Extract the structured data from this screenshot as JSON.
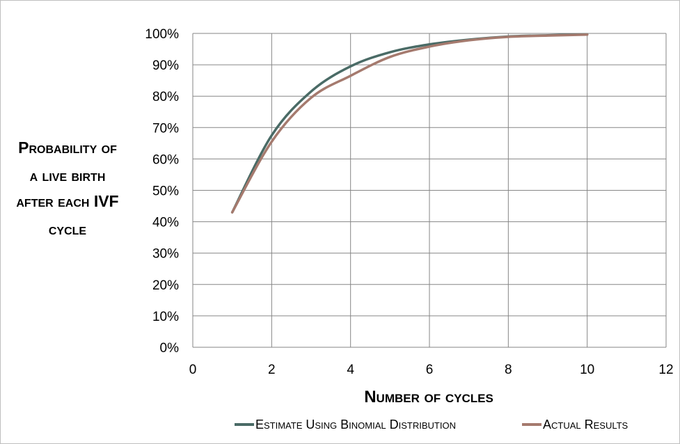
{
  "chart_data": {
    "type": "line",
    "title": "",
    "xlabel": "Number of cycles",
    "ylabel_lines": [
      "Probability of",
      "a live birth",
      "after each IVF",
      "cycle"
    ],
    "xlim": [
      0,
      12
    ],
    "ylim": [
      0,
      100
    ],
    "x_ticks": [
      "0",
      "2",
      "4",
      "6",
      "8",
      "10",
      "12"
    ],
    "y_ticks": [
      "0%",
      "10%",
      "20%",
      "30%",
      "40%",
      "50%",
      "60%",
      "70%",
      "80%",
      "90%",
      "100%"
    ],
    "grid": true,
    "legend_position": "bottom",
    "x": [
      1,
      2,
      3,
      4,
      5,
      6,
      7,
      8,
      9,
      10
    ],
    "series": [
      {
        "name": "Estimate Using Binomial Distribution",
        "color": "#4a6b66",
        "values": [
          43,
          67.5,
          81.5,
          89.5,
          94,
          96.5,
          98,
          99,
          99.4,
          99.7
        ]
      },
      {
        "name": "Actual Results",
        "color": "#a57a6e",
        "values": [
          43,
          65.5,
          79.5,
          86.5,
          92.5,
          95.8,
          97.8,
          98.9,
          99.3,
          99.6
        ]
      }
    ]
  }
}
